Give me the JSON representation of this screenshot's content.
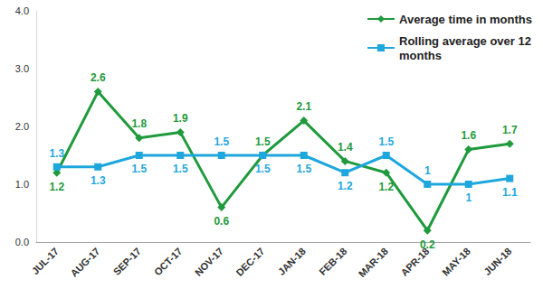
{
  "chart_data": {
    "type": "line",
    "categories": [
      "JUL-17",
      "AUG-17",
      "SEP-17",
      "OCT-17",
      "NOV-17",
      "DEC-17",
      "JAN-18",
      "FEB-18",
      "MAR-18",
      "APR-18",
      "MAY-18",
      "JUN-18"
    ],
    "series": [
      {
        "name": "Average time in months",
        "color": "#1f9a3c",
        "marker": "diamond",
        "line_style": "solid",
        "values": [
          1.2,
          2.6,
          1.8,
          1.9,
          0.6,
          1.5,
          2.1,
          1.4,
          1.2,
          0.2,
          1.6,
          1.7
        ]
      },
      {
        "name": "Rolling average over 12 months",
        "color": "#1ea7dd",
        "marker": "square",
        "line_style": "solid",
        "values": [
          1.3,
          1.3,
          1.5,
          1.5,
          1.5,
          1.5,
          1.5,
          1.2,
          1.5,
          1.0,
          1.0,
          1.1
        ]
      }
    ],
    "ylim": [
      0,
      4
    ],
    "yticks": [
      {
        "value": 0,
        "label": "0.0"
      },
      {
        "value": 1,
        "label": "1.0"
      },
      {
        "value": 2,
        "label": "2.0"
      },
      {
        "value": 3,
        "label": "3.0"
      },
      {
        "value": 4,
        "label": "4.0"
      }
    ],
    "grid": false,
    "legend": "top-right",
    "data_labels": true
  }
}
